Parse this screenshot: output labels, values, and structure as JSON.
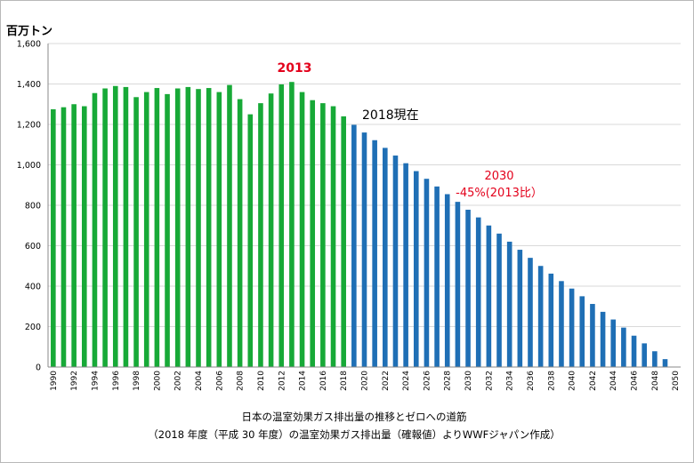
{
  "chart_data": {
    "type": "bar",
    "ylabel": "百万トン",
    "ylim": [
      0,
      1600
    ],
    "yticks": [
      "0",
      "200",
      "400",
      "600",
      "800",
      "1,000",
      "1,200",
      "1,400",
      "1,600"
    ],
    "grid": true,
    "caption_line1": "日本の温室効果ガス排出量の推移とゼロへの道筋",
    "caption_line2": "（2018 年度（平成 30 年度）の温室効果ガス排出量（確報値）よりWWFジャパン作成）",
    "colors": {
      "actual": "#17a937",
      "projected": "#1f6fb5"
    },
    "x": [
      1990,
      1991,
      1992,
      1993,
      1994,
      1995,
      1996,
      1997,
      1998,
      1999,
      2000,
      2001,
      2002,
      2003,
      2004,
      2005,
      2006,
      2007,
      2008,
      2009,
      2010,
      2011,
      2012,
      2013,
      2014,
      2015,
      2016,
      2017,
      2018,
      2019,
      2020,
      2021,
      2022,
      2023,
      2024,
      2025,
      2026,
      2027,
      2028,
      2029,
      2030,
      2031,
      2032,
      2033,
      2034,
      2035,
      2036,
      2037,
      2038,
      2039,
      2040,
      2041,
      2042,
      2043,
      2044,
      2045,
      2046,
      2047,
      2048,
      2049,
      2050
    ],
    "series": [
      {
        "values": [
          1275,
          1285,
          1300,
          1290,
          1355,
          1378,
          1390,
          1385,
          1335,
          1360,
          1380,
          1350,
          1378,
          1385,
          1375,
          1380,
          1360,
          1395,
          1325,
          1250,
          1305,
          1353,
          1398,
          1410,
          1360,
          1320,
          1305,
          1290,
          1240,
          null,
          null,
          null,
          null,
          null,
          null,
          null,
          null,
          null,
          null,
          null,
          null,
          null,
          null,
          null,
          null,
          null,
          null,
          null,
          null,
          null,
          null,
          null,
          null,
          null,
          null,
          null,
          null,
          null,
          null,
          null,
          null
        ]
      },
      {
        "values": [
          null,
          null,
          null,
          null,
          null,
          null,
          null,
          null,
          null,
          null,
          null,
          null,
          null,
          null,
          null,
          null,
          null,
          null,
          null,
          null,
          null,
          null,
          null,
          null,
          null,
          null,
          null,
          null,
          null,
          1198,
          1160,
          1122,
          1084,
          1046,
          1008,
          969,
          931,
          893,
          855,
          817,
          778,
          740,
          700,
          660,
          620,
          580,
          540,
          500,
          462,
          425,
          388,
          350,
          312,
          273,
          235,
          195,
          155,
          117,
          78,
          39,
          null
        ]
      }
    ],
    "annotations": {
      "peak_label": "2013",
      "now_label": "2018現在",
      "target_label_1": "2030",
      "target_label_2": "-45%(2013比）"
    }
  }
}
